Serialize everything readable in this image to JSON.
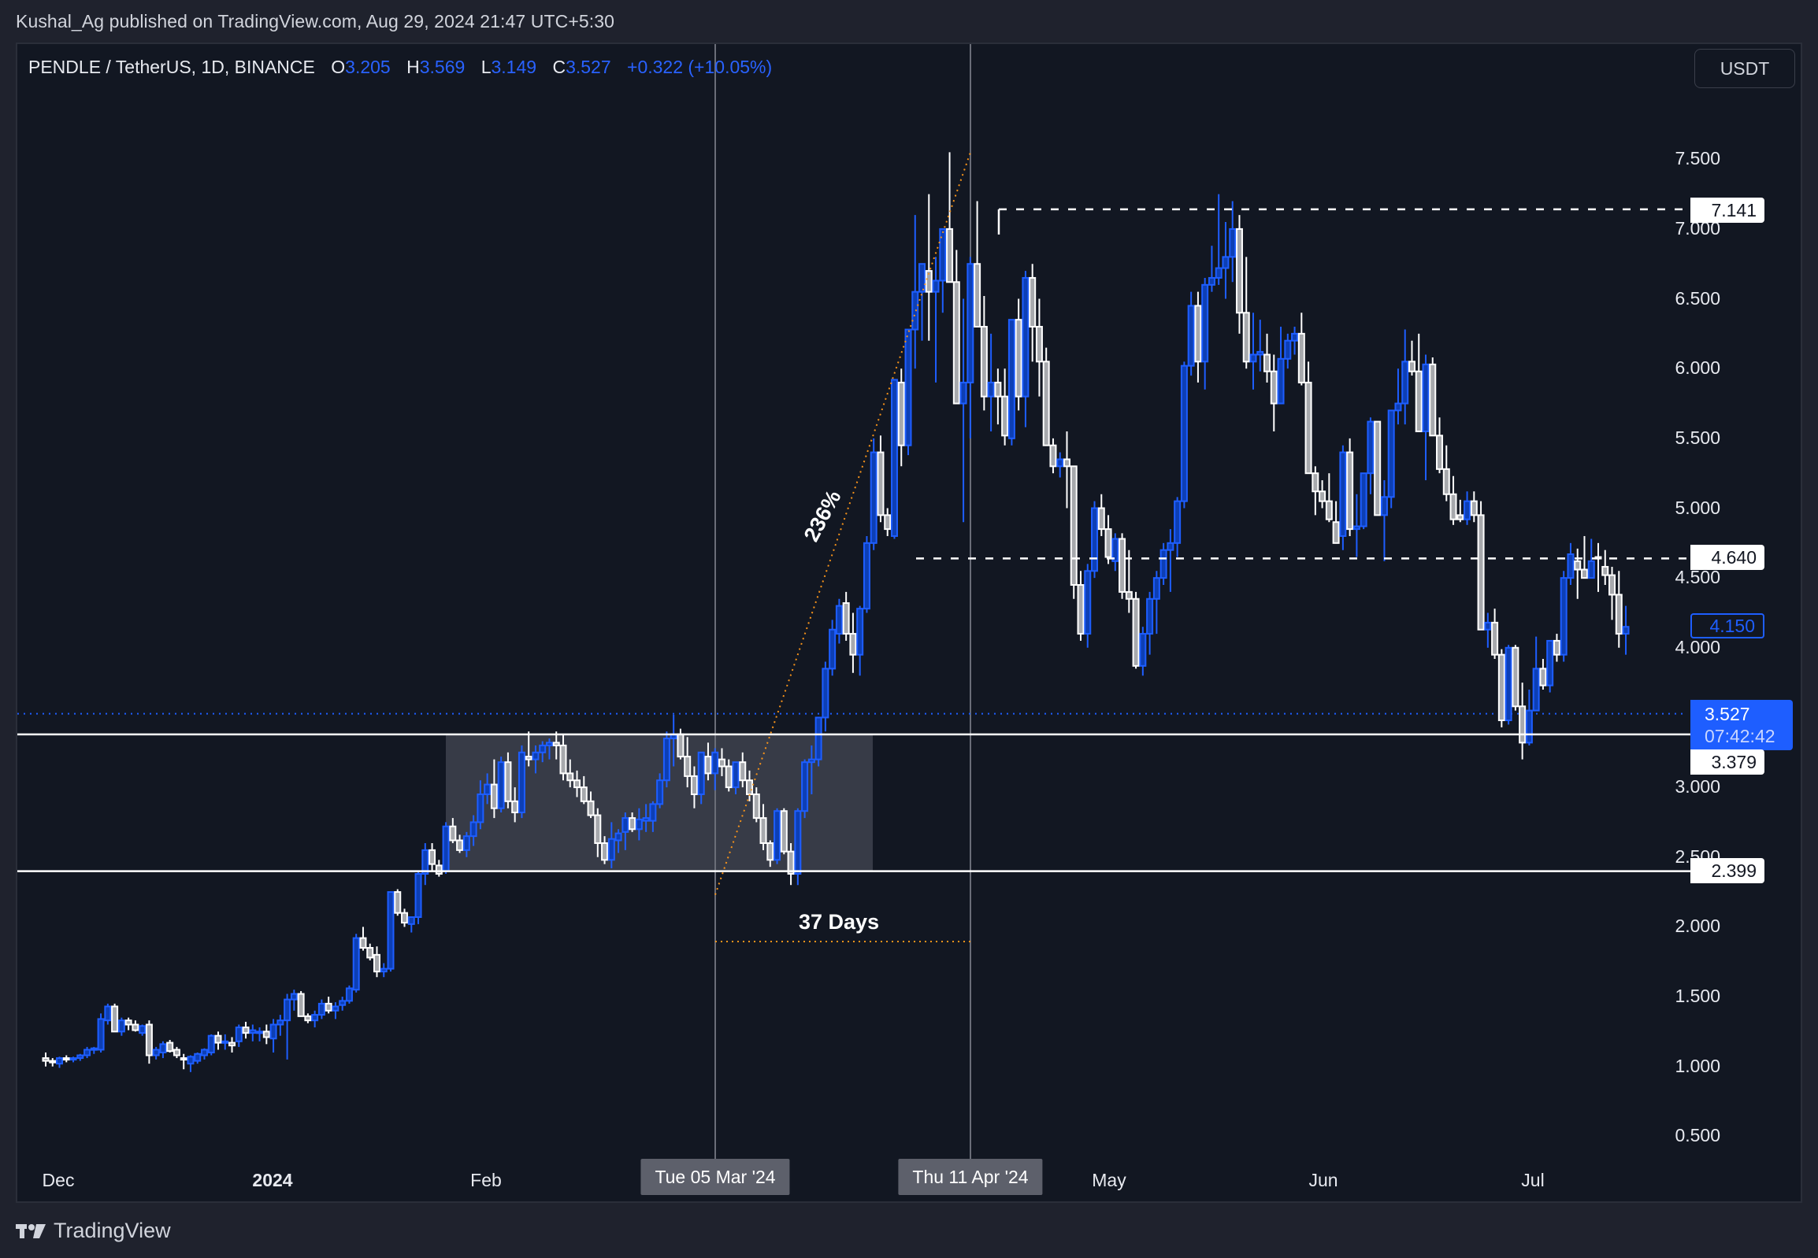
{
  "header": {
    "publisher_line": "Kushal_Ag published on TradingView.com, Aug 29, 2024 21:47 UTC+5:30"
  },
  "legend": {
    "symbol": "PENDLE / TetherUS, 1D, BINANCE",
    "open_label": "O",
    "open": "3.205",
    "high_label": "H",
    "high": "3.569",
    "low_label": "L",
    "low": "3.149",
    "close_label": "C",
    "close": "3.527",
    "change": "+0.322 (+10.05%)"
  },
  "currency_button": "USDT",
  "price_axis": {
    "ticks": [
      "7.500",
      "7.000",
      "6.500",
      "6.000",
      "5.500",
      "5.000",
      "4.500",
      "4.000",
      "3.000",
      "2.500",
      "2.000",
      "1.500",
      "1.000",
      "0.500"
    ],
    "tags": {
      "resistance_top": "7.141",
      "resistance_mid": "4.640",
      "last_visible": "4.150",
      "current_price": "3.527",
      "countdown": "07:42:42",
      "box_top": "3.379",
      "box_bottom": "2.399"
    }
  },
  "time_axis": {
    "labels": [
      {
        "text": "Dec",
        "x": 74,
        "bold": false
      },
      {
        "text": "2024",
        "x": 346,
        "bold": true
      },
      {
        "text": "Feb",
        "x": 617,
        "bold": false
      },
      {
        "text": "May",
        "x": 1408,
        "bold": false
      },
      {
        "text": "Jun",
        "x": 1680,
        "bold": false
      },
      {
        "text": "Jul",
        "x": 1946,
        "bold": false
      }
    ],
    "crosshair_1": "Tue 05 Mar '24",
    "crosshair_2": "Thu 11 Apr '24"
  },
  "annotations": {
    "percent_move": "236%",
    "duration": "37 Days"
  },
  "footer": {
    "brand": "TradingView"
  },
  "colors": {
    "background": "#121722",
    "up_candle": "#1e5eff",
    "up_fill": "#0d3fb5",
    "down_candle": "#ffffff",
    "down_fill": "#a7a9ad",
    "box_fill": "#3e424d",
    "measure_line": "#f7931a"
  },
  "chart_data": {
    "type": "candlestick",
    "title": "PENDLE / TetherUS, 1D, BINANCE",
    "xlabel": "",
    "ylabel": "USDT",
    "ylim": [
      0.3,
      7.9
    ],
    "x_start": "2023-11-29",
    "x_labels": [
      "Dec",
      "2024",
      "Feb",
      "Mar",
      "Apr",
      "May",
      "Jun",
      "Jul"
    ],
    "horizontal_levels": [
      {
        "price": 7.141,
        "style": "dashed"
      },
      {
        "price": 4.64,
        "style": "dashed"
      },
      {
        "price": 3.379,
        "style": "solid"
      },
      {
        "price": 2.399,
        "style": "solid"
      }
    ],
    "range_box": {
      "from": "2024-01-23",
      "to": "2024-03-23",
      "top": 3.379,
      "bottom": 2.399
    },
    "measure": {
      "from_date": "2024-03-05",
      "from_price": 2.23,
      "to_date": "2024-04-11",
      "to_price": 7.55,
      "label_pct": "236%",
      "label_days": "37 Days"
    },
    "ohlc": [
      [
        1.06,
        1.1,
        1.0,
        1.04
      ],
      [
        1.04,
        1.06,
        1.0,
        1.03
      ],
      [
        1.02,
        1.07,
        0.99,
        1.06
      ],
      [
        1.06,
        1.08,
        1.03,
        1.05
      ],
      [
        1.05,
        1.07,
        1.03,
        1.06
      ],
      [
        1.06,
        1.09,
        1.04,
        1.08
      ],
      [
        1.08,
        1.14,
        1.06,
        1.12
      ],
      [
        1.12,
        1.14,
        1.09,
        1.13
      ],
      [
        1.12,
        1.38,
        1.1,
        1.34
      ],
      [
        1.33,
        1.45,
        1.3,
        1.43
      ],
      [
        1.43,
        1.45,
        1.28,
        1.25
      ],
      [
        1.25,
        1.35,
        1.22,
        1.33
      ],
      [
        1.33,
        1.35,
        1.26,
        1.3
      ],
      [
        1.3,
        1.33,
        1.25,
        1.26
      ],
      [
        1.24,
        1.3,
        1.22,
        1.29
      ],
      [
        1.3,
        1.33,
        1.02,
        1.08
      ],
      [
        1.08,
        1.14,
        1.05,
        1.12
      ],
      [
        1.1,
        1.18,
        1.06,
        1.16
      ],
      [
        1.17,
        1.19,
        1.1,
        1.11
      ],
      [
        1.12,
        1.14,
        1.06,
        1.08
      ],
      [
        1.06,
        1.09,
        0.98,
        1.05
      ],
      [
        1.02,
        1.08,
        0.96,
        1.07
      ],
      [
        1.04,
        1.1,
        1.02,
        1.09
      ],
      [
        1.08,
        1.13,
        1.05,
        1.12
      ],
      [
        1.1,
        1.23,
        1.08,
        1.22
      ],
      [
        1.22,
        1.25,
        1.12,
        1.17
      ],
      [
        1.17,
        1.23,
        1.12,
        1.18
      ],
      [
        1.17,
        1.21,
        1.1,
        1.15
      ],
      [
        1.18,
        1.3,
        1.14,
        1.28
      ],
      [
        1.28,
        1.32,
        1.2,
        1.24
      ],
      [
        1.24,
        1.3,
        1.18,
        1.26
      ],
      [
        1.24,
        1.28,
        1.18,
        1.25
      ],
      [
        1.25,
        1.3,
        1.16,
        1.21
      ],
      [
        1.2,
        1.34,
        1.1,
        1.3
      ],
      [
        1.3,
        1.37,
        1.22,
        1.33
      ],
      [
        1.33,
        1.52,
        1.05,
        1.48
      ],
      [
        1.48,
        1.55,
        1.4,
        1.52
      ],
      [
        1.52,
        1.54,
        1.38,
        1.36
      ],
      [
        1.36,
        1.38,
        1.31,
        1.33
      ],
      [
        1.33,
        1.4,
        1.28,
        1.37
      ],
      [
        1.37,
        1.48,
        1.34,
        1.45
      ],
      [
        1.45,
        1.5,
        1.38,
        1.4
      ],
      [
        1.4,
        1.46,
        1.34,
        1.43
      ],
      [
        1.44,
        1.5,
        1.4,
        1.47
      ],
      [
        1.47,
        1.58,
        1.45,
        1.56
      ],
      [
        1.55,
        1.95,
        1.53,
        1.92
      ],
      [
        1.92,
        2.0,
        1.83,
        1.85
      ],
      [
        1.85,
        1.88,
        1.76,
        1.78
      ],
      [
        1.8,
        1.86,
        1.64,
        1.68
      ],
      [
        1.68,
        1.74,
        1.64,
        1.7
      ],
      [
        1.7,
        2.25,
        1.68,
        2.25
      ],
      [
        2.25,
        2.27,
        2.08,
        2.1
      ],
      [
        2.1,
        2.13,
        2.0,
        2.03
      ],
      [
        2.02,
        2.07,
        1.96,
        2.07
      ],
      [
        2.07,
        2.4,
        2.02,
        2.38
      ],
      [
        2.38,
        2.6,
        2.3,
        2.55
      ],
      [
        2.55,
        2.6,
        2.4,
        2.45
      ],
      [
        2.44,
        2.48,
        2.36,
        2.38
      ],
      [
        2.4,
        2.75,
        2.38,
        2.72
      ],
      [
        2.72,
        2.78,
        2.6,
        2.62
      ],
      [
        2.62,
        2.66,
        2.53,
        2.55
      ],
      [
        2.55,
        2.68,
        2.5,
        2.65
      ],
      [
        2.65,
        2.8,
        2.58,
        2.75
      ],
      [
        2.75,
        3.05,
        2.7,
        2.95
      ],
      [
        2.95,
        3.1,
        2.88,
        3.02
      ],
      [
        3.02,
        3.2,
        2.78,
        2.85
      ],
      [
        2.85,
        3.22,
        2.82,
        3.18
      ],
      [
        3.18,
        3.25,
        2.85,
        2.9
      ],
      [
        2.9,
        3.0,
        2.75,
        2.82
      ],
      [
        2.82,
        3.3,
        2.78,
        3.25
      ],
      [
        3.22,
        3.4,
        3.15,
        3.2
      ],
      [
        3.2,
        3.3,
        3.1,
        3.25
      ],
      [
        3.25,
        3.33,
        3.18,
        3.3
      ],
      [
        3.3,
        3.35,
        3.2,
        3.32
      ],
      [
        3.32,
        3.4,
        3.2,
        3.3
      ],
      [
        3.3,
        3.38,
        3.05,
        3.1
      ],
      [
        3.1,
        3.2,
        3.0,
        3.05
      ],
      [
        3.05,
        3.12,
        2.93,
        3.0
      ],
      [
        3.0,
        3.08,
        2.88,
        2.9
      ],
      [
        2.9,
        2.97,
        2.78,
        2.8
      ],
      [
        2.8,
        2.85,
        2.5,
        2.6
      ],
      [
        2.6,
        2.65,
        2.45,
        2.48
      ],
      [
        2.48,
        2.75,
        2.42,
        2.63
      ],
      [
        2.62,
        2.7,
        2.53,
        2.67
      ],
      [
        2.68,
        2.82,
        2.55,
        2.78
      ],
      [
        2.78,
        2.82,
        2.68,
        2.7
      ],
      [
        2.7,
        2.85,
        2.62,
        2.77
      ],
      [
        2.76,
        2.88,
        2.68,
        2.78
      ],
      [
        2.76,
        2.9,
        2.68,
        2.88
      ],
      [
        2.88,
        3.1,
        2.85,
        3.05
      ],
      [
        3.05,
        3.4,
        3.0,
        3.35
      ],
      [
        3.35,
        3.52,
        3.15,
        3.38
      ],
      [
        3.38,
        3.42,
        3.2,
        3.22
      ],
      [
        3.22,
        3.36,
        3.0,
        3.08
      ],
      [
        3.08,
        3.15,
        2.85,
        2.95
      ],
      [
        2.95,
        3.25,
        2.88,
        3.25
      ],
      [
        3.22,
        3.32,
        3.05,
        3.1
      ],
      [
        3.1,
        3.28,
        2.98,
        3.25
      ],
      [
        3.2,
        3.28,
        3.08,
        3.15
      ],
      [
        3.15,
        3.2,
        2.97,
        3.0
      ],
      [
        3.0,
        3.18,
        2.95,
        3.18
      ],
      [
        3.18,
        3.25,
        3.0,
        3.05
      ],
      [
        3.05,
        3.12,
        2.9,
        2.95
      ],
      [
        2.95,
        3.0,
        2.75,
        2.78
      ],
      [
        2.78,
        2.88,
        2.55,
        2.6
      ],
      [
        2.6,
        2.62,
        2.43,
        2.48
      ],
      [
        2.48,
        2.85,
        2.45,
        2.83
      ],
      [
        2.83,
        2.85,
        2.52,
        2.54
      ],
      [
        2.54,
        2.6,
        2.3,
        2.38
      ],
      [
        2.38,
        2.85,
        2.3,
        2.83
      ],
      [
        2.83,
        3.2,
        2.78,
        3.18
      ],
      [
        3.18,
        3.3,
        2.95,
        3.2
      ],
      [
        3.2,
        3.42,
        3.15,
        3.5
      ],
      [
        3.5,
        3.9,
        3.4,
        3.85
      ],
      [
        3.85,
        4.2,
        3.8,
        4.13
      ],
      [
        4.1,
        4.35,
        4.03,
        4.3
      ],
      [
        4.32,
        4.4,
        4.05,
        4.1
      ],
      [
        4.1,
        4.25,
        3.82,
        3.95
      ],
      [
        3.95,
        4.3,
        3.8,
        4.28
      ],
      [
        4.28,
        4.8,
        4.25,
        4.75
      ],
      [
        4.75,
        5.5,
        4.7,
        5.4
      ],
      [
        5.4,
        5.52,
        4.9,
        4.95
      ],
      [
        4.95,
        5.0,
        4.8,
        4.85
      ],
      [
        4.8,
        5.9,
        4.78,
        5.92
      ],
      [
        5.9,
        6.0,
        5.3,
        5.45
      ],
      [
        5.45,
        6.25,
        5.38,
        6.28
      ],
      [
        6.28,
        7.1,
        6.0,
        6.55
      ],
      [
        6.55,
        6.75,
        6.2,
        6.75
      ],
      [
        6.7,
        7.25,
        6.2,
        6.55
      ],
      [
        6.55,
        6.8,
        5.9,
        6.63
      ],
      [
        6.63,
        7.0,
        6.4,
        7.0
      ],
      [
        7.0,
        7.55,
        6.95,
        6.62
      ],
      [
        6.62,
        6.85,
        5.75,
        5.75
      ],
      [
        5.75,
        6.5,
        4.9,
        5.9
      ],
      [
        5.9,
        6.8,
        5.5,
        6.75
      ],
      [
        6.75,
        7.2,
        6.4,
        6.3
      ],
      [
        6.3,
        6.52,
        5.7,
        5.8
      ],
      [
        5.8,
        6.25,
        5.55,
        5.9
      ],
      [
        5.9,
        6.0,
        5.6,
        5.8
      ],
      [
        5.8,
        6.0,
        5.45,
        5.52
      ],
      [
        5.5,
        6.3,
        5.45,
        6.35
      ],
      [
        6.35,
        6.5,
        5.7,
        5.8
      ],
      [
        5.8,
        6.7,
        5.58,
        6.65
      ],
      [
        6.65,
        6.75,
        6.05,
        6.3
      ],
      [
        6.3,
        6.5,
        5.8,
        6.05
      ],
      [
        6.05,
        6.15,
        5.45,
        5.45
      ],
      [
        5.45,
        5.5,
        5.25,
        5.3
      ],
      [
        5.3,
        5.4,
        5.22,
        5.35
      ],
      [
        5.35,
        5.55,
        5.0,
        5.3
      ],
      [
        5.3,
        5.2,
        4.35,
        4.45
      ],
      [
        4.45,
        4.55,
        4.05,
        4.1
      ],
      [
        4.1,
        4.6,
        4.0,
        4.55
      ],
      [
        4.55,
        5.05,
        4.5,
        5.0
      ],
      [
        5.0,
        5.1,
        4.8,
        4.85
      ],
      [
        4.85,
        4.95,
        4.6,
        4.65
      ],
      [
        4.62,
        4.82,
        4.55,
        4.78
      ],
      [
        4.78,
        4.82,
        4.35,
        4.4
      ],
      [
        4.4,
        4.7,
        4.25,
        4.35
      ],
      [
        4.35,
        4.4,
        3.85,
        3.87
      ],
      [
        3.87,
        4.15,
        3.8,
        4.1
      ],
      [
        4.1,
        4.4,
        3.95,
        4.35
      ],
      [
        4.35,
        4.55,
        4.1,
        4.5
      ],
      [
        4.5,
        4.75,
        4.45,
        4.7
      ],
      [
        4.7,
        4.85,
        4.4,
        4.75
      ],
      [
        4.75,
        5.08,
        4.65,
        5.05
      ],
      [
        5.05,
        6.05,
        5.0,
        6.02
      ],
      [
        6.02,
        6.55,
        5.95,
        6.45
      ],
      [
        6.45,
        6.55,
        5.9,
        6.05
      ],
      [
        6.05,
        6.65,
        5.85,
        6.6
      ],
      [
        6.6,
        6.88,
        6.55,
        6.65
      ],
      [
        6.65,
        7.25,
        6.6,
        6.72
      ],
      [
        6.72,
        7.05,
        6.5,
        6.8
      ],
      [
        6.8,
        7.2,
        6.62,
        7.0
      ],
      [
        7.0,
        7.1,
        6.25,
        6.4
      ],
      [
        6.4,
        6.8,
        6.0,
        6.05
      ],
      [
        6.05,
        6.4,
        5.85,
        6.1
      ],
      [
        6.1,
        6.35,
        5.98,
        6.12
      ],
      [
        6.1,
        6.25,
        5.9,
        5.98
      ],
      [
        5.98,
        6.1,
        5.55,
        5.75
      ],
      [
        5.75,
        6.3,
        5.75,
        6.07
      ],
      [
        6.07,
        6.25,
        6.0,
        6.2
      ],
      [
        6.2,
        6.3,
        6.1,
        6.25
      ],
      [
        6.25,
        6.4,
        5.88,
        5.9
      ],
      [
        5.9,
        6.05,
        5.4,
        5.25
      ],
      [
        5.25,
        5.3,
        4.95,
        5.12
      ],
      [
        5.12,
        5.2,
        5.0,
        5.05
      ],
      [
        5.05,
        5.25,
        4.9,
        4.92
      ],
      [
        4.9,
        5.05,
        4.78,
        4.75
      ],
      [
        4.8,
        5.45,
        4.7,
        5.4
      ],
      [
        5.4,
        5.5,
        4.8,
        4.85
      ],
      [
        4.85,
        5.1,
        4.65,
        4.87
      ],
      [
        4.87,
        5.25,
        4.85,
        5.25
      ],
      [
        5.25,
        5.65,
        5.1,
        5.62
      ],
      [
        5.62,
        5.62,
        4.95,
        4.95
      ],
      [
        4.95,
        5.2,
        4.62,
        5.08
      ],
      [
        5.08,
        5.7,
        5.0,
        5.7
      ],
      [
        5.7,
        6.0,
        5.6,
        5.75
      ],
      [
        5.75,
        6.28,
        5.6,
        6.05
      ],
      [
        6.05,
        6.2,
        5.95,
        5.98
      ],
      [
        5.98,
        6.25,
        5.55,
        5.55
      ],
      [
        5.55,
        6.1,
        5.2,
        6.03
      ],
      [
        6.03,
        6.08,
        5.52,
        5.52
      ],
      [
        5.52,
        5.65,
        5.25,
        5.28
      ],
      [
        5.28,
        5.45,
        5.05,
        5.1
      ],
      [
        5.1,
        5.23,
        4.88,
        4.92
      ],
      [
        4.95,
        5.06,
        4.9,
        4.92
      ],
      [
        4.92,
        5.12,
        4.88,
        5.05
      ],
      [
        5.05,
        5.12,
        4.9,
        4.95
      ],
      [
        4.95,
        5.05,
        4.17,
        4.13
      ],
      [
        4.13,
        4.25,
        4.0,
        4.18
      ],
      [
        4.18,
        4.28,
        3.92,
        3.95
      ],
      [
        3.95,
        3.99,
        3.43,
        3.48
      ],
      [
        3.48,
        4.02,
        3.45,
        4.0
      ],
      [
        4.0,
        4.02,
        3.55,
        3.58
      ],
      [
        3.58,
        3.75,
        3.2,
        3.32
      ],
      [
        3.32,
        3.7,
        3.3,
        3.55
      ],
      [
        3.55,
        4.08,
        3.55,
        3.85
      ],
      [
        3.85,
        3.92,
        3.7,
        3.73
      ],
      [
        3.73,
        4.0,
        3.68,
        4.05
      ],
      [
        4.05,
        4.1,
        3.9,
        3.95
      ],
      [
        3.95,
        4.55,
        3.9,
        4.5
      ],
      [
        4.5,
        4.75,
        4.45,
        4.67
      ],
      [
        4.62,
        4.71,
        4.35,
        4.56
      ],
      [
        4.56,
        4.8,
        4.52,
        4.5
      ],
      [
        4.5,
        4.78,
        4.5,
        4.62
      ],
      [
        4.65,
        4.75,
        4.4,
        4.64
      ],
      [
        4.58,
        4.7,
        4.45,
        4.52
      ],
      [
        4.52,
        4.58,
        4.2,
        4.38
      ],
      [
        4.38,
        4.55,
        4.0,
        4.1
      ],
      [
        4.1,
        4.3,
        3.95,
        4.15
      ]
    ]
  }
}
